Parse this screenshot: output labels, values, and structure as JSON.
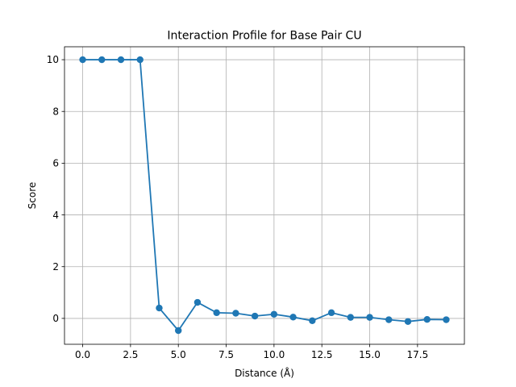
{
  "chart_data": {
    "type": "line",
    "title": "Interaction Profile for Base Pair CU",
    "xlabel": "Distance (Å)",
    "ylabel": "Score",
    "xlim": [
      -0.95,
      19.95
    ],
    "ylim": [
      -1.0,
      10.5
    ],
    "grid": true,
    "x_ticks": [
      0.0,
      2.5,
      5.0,
      7.5,
      10.0,
      12.5,
      15.0,
      17.5
    ],
    "x_tick_labels": [
      "0.0",
      "2.5",
      "5.0",
      "7.5",
      "10.0",
      "12.5",
      "15.0",
      "17.5"
    ],
    "y_ticks": [
      0,
      2,
      4,
      6,
      8,
      10
    ],
    "y_tick_labels": [
      "0",
      "2",
      "4",
      "6",
      "8",
      "10"
    ],
    "series": [
      {
        "color": "#1f77b4",
        "marker": "circle",
        "x": [
          0,
          1,
          2,
          3,
          4,
          5,
          6,
          7,
          8,
          9,
          10,
          11,
          12,
          13,
          14,
          15,
          16,
          17,
          18,
          19
        ],
        "y": [
          10,
          10,
          10,
          10,
          0.4,
          -0.47,
          0.62,
          0.22,
          0.2,
          0.09,
          0.16,
          0.05,
          -0.09,
          0.22,
          0.04,
          0.04,
          -0.05,
          -0.12,
          -0.04,
          -0.05
        ]
      }
    ]
  }
}
